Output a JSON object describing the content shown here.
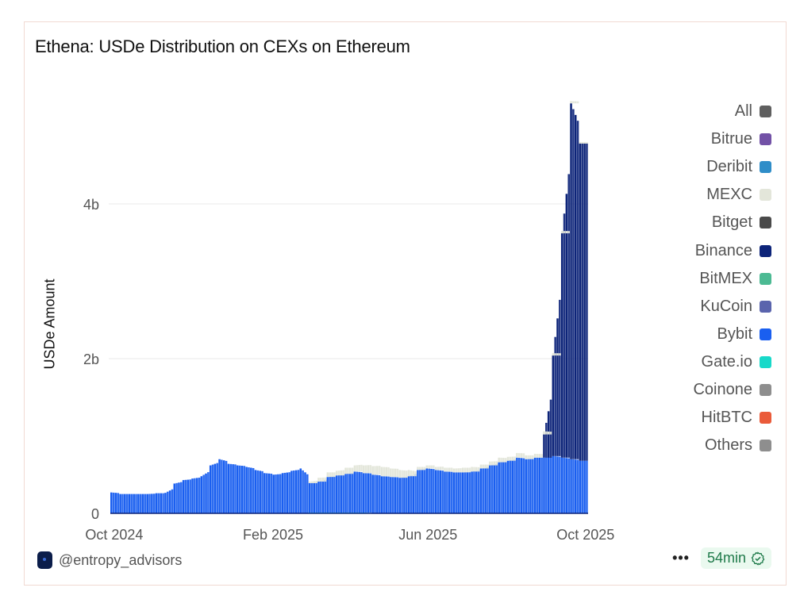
{
  "card": {
    "title": "Ethena: USDe Distribution on CEXs on Ethereum",
    "author_handle": "@entropy_advisors",
    "more_label": "•••",
    "freshness_label": "54min",
    "freshness_icon": "verified-check-icon"
  },
  "chart_data": {
    "type": "bar",
    "stacked": true,
    "title": "Ethena: USDe Distribution on CEXs on Ethereum",
    "xlabel": "",
    "ylabel": "USDe Amount",
    "y_unit": "billions USDe",
    "ylim": [
      0,
      5.6
    ],
    "yticks": [
      0,
      2,
      4
    ],
    "ytick_labels": [
      "0",
      "2b",
      "4b"
    ],
    "xticks": [
      "2024-10-01",
      "2025-02-01",
      "2025-06-01",
      "2025-10-01"
    ],
    "xtick_labels": [
      "Oct 2024",
      "Feb 2025",
      "Jun 2025",
      "Oct 2025"
    ],
    "x_range": [
      "2024-09-28",
      "2025-10-03"
    ],
    "grid": true,
    "legend_position": "right",
    "legend": [
      {
        "name": "All",
        "color": "#5f5f5f"
      },
      {
        "name": "Bitrue",
        "color": "#7251a6"
      },
      {
        "name": "Deribit",
        "color": "#2f8dc8"
      },
      {
        "name": "MEXC",
        "color": "#e3e6da"
      },
      {
        "name": "Bitget",
        "color": "#4a4a4a"
      },
      {
        "name": "Binance",
        "color": "#0d2479"
      },
      {
        "name": "BitMEX",
        "color": "#4cba93"
      },
      {
        "name": "KuCoin",
        "color": "#5a64ad"
      },
      {
        "name": "Bybit",
        "color": "#1a5ff0"
      },
      {
        "name": "Gate.io",
        "color": "#18d9c9"
      },
      {
        "name": "Coinone",
        "color": "#8e8e8e"
      },
      {
        "name": "HitBTC",
        "color": "#ea5b3a"
      },
      {
        "name": "Others",
        "color": "#8e8e8e"
      }
    ],
    "x": [
      "2024-09-29",
      "2024-10-06",
      "2024-10-13",
      "2024-10-20",
      "2024-10-27",
      "2024-11-03",
      "2024-11-10",
      "2024-11-17",
      "2024-11-24",
      "2024-12-01",
      "2024-12-08",
      "2024-12-15",
      "2024-12-22",
      "2024-12-29",
      "2025-01-05",
      "2025-01-12",
      "2025-01-19",
      "2025-01-26",
      "2025-02-02",
      "2025-02-09",
      "2025-02-16",
      "2025-02-23",
      "2025-03-02",
      "2025-03-09",
      "2025-03-16",
      "2025-03-23",
      "2025-03-30",
      "2025-04-06",
      "2025-04-13",
      "2025-04-20",
      "2025-04-27",
      "2025-05-04",
      "2025-05-11",
      "2025-05-18",
      "2025-05-25",
      "2025-06-01",
      "2025-06-08",
      "2025-06-15",
      "2025-06-22",
      "2025-06-29",
      "2025-07-06",
      "2025-07-13",
      "2025-07-20",
      "2025-07-27",
      "2025-08-03",
      "2025-08-10",
      "2025-08-17",
      "2025-08-24",
      "2025-08-31",
      "2025-09-07",
      "2025-09-14",
      "2025-09-21",
      "2025-09-28"
    ],
    "series": [
      {
        "name": "Gate.io",
        "values": [
          0,
          0,
          0,
          0,
          0,
          0,
          0.005,
          0.005,
          0,
          0,
          0,
          0,
          0,
          0,
          0,
          0,
          0,
          0,
          0,
          0,
          0,
          0,
          0.01,
          0.01,
          0.01,
          0.01,
          0.01,
          0.01,
          0.01,
          0,
          0,
          0,
          0,
          0,
          0,
          0,
          0,
          0,
          0,
          0,
          0,
          0,
          0,
          0,
          0,
          0,
          0,
          0,
          0,
          0,
          0,
          0,
          0
        ]
      },
      {
        "name": "Bybit",
        "values": [
          0.27,
          0.25,
          0.25,
          0.25,
          0.25,
          0.26,
          0.26,
          0.38,
          0.43,
          0.45,
          0.48,
          0.62,
          0.7,
          0.64,
          0.62,
          0.6,
          0.56,
          0.52,
          0.5,
          0.52,
          0.55,
          0.58,
          0.38,
          0.4,
          0.46,
          0.48,
          0.5,
          0.53,
          0.51,
          0.5,
          0.48,
          0.47,
          0.46,
          0.48,
          0.56,
          0.58,
          0.56,
          0.54,
          0.53,
          0.53,
          0.54,
          0.58,
          0.62,
          0.66,
          0.68,
          0.72,
          0.7,
          0.72,
          0.72,
          0.74,
          0.72,
          0.7,
          0.68
        ]
      },
      {
        "name": "Binance",
        "values": [
          0,
          0,
          0,
          0,
          0,
          0,
          0,
          0,
          0,
          0,
          0,
          0,
          0,
          0,
          0,
          0,
          0,
          0,
          0,
          0,
          0,
          0,
          0,
          0,
          0,
          0,
          0,
          0,
          0,
          0,
          0,
          0,
          0,
          0,
          0,
          0,
          0,
          0,
          0,
          0,
          0,
          0,
          0,
          0,
          0,
          0,
          0,
          0,
          0.3,
          1.3,
          2.9,
          4.6,
          4.1
        ]
      },
      {
        "name": "MEXC",
        "values": [
          0,
          0,
          0,
          0,
          0,
          0,
          0,
          0,
          0,
          0,
          0,
          0,
          0,
          0,
          0,
          0,
          0,
          0,
          0,
          0,
          0,
          0,
          0.02,
          0.05,
          0.06,
          0.06,
          0.08,
          0.08,
          0.1,
          0.11,
          0.12,
          0.11,
          0.1,
          0.08,
          0.04,
          0.04,
          0.04,
          0.05,
          0.05,
          0.06,
          0.06,
          0.05,
          0.05,
          0.06,
          0.05,
          0.06,
          0.05,
          0.05,
          0.04,
          0.03,
          0.03,
          0.03,
          0.02
        ]
      }
    ]
  }
}
